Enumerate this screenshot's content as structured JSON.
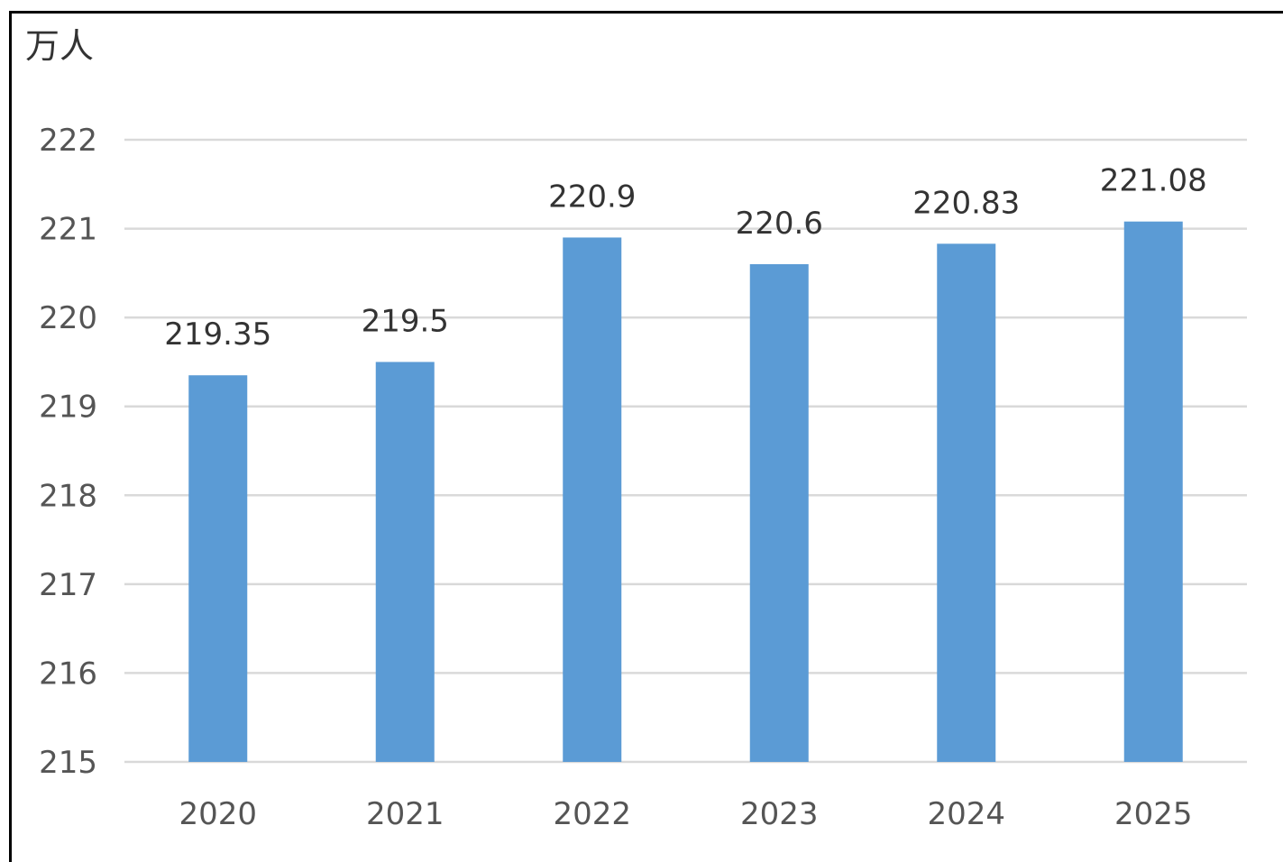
{
  "chart_data": {
    "type": "bar",
    "ylabel": "万人",
    "categories": [
      "2020",
      "2021",
      "2022",
      "2023",
      "2024",
      "2025"
    ],
    "values": [
      219.35,
      219.5,
      220.9,
      220.6,
      220.83,
      221.08
    ],
    "data_labels": [
      "219.35",
      "219.5",
      "220.9",
      "220.6",
      "220.83",
      "221.08"
    ],
    "ylim": [
      215,
      222
    ],
    "yticks": [
      "215",
      "216",
      "217",
      "218",
      "219",
      "220",
      "221",
      "222"
    ],
    "grid": true,
    "legend": "none",
    "bar_color": "#5B9BD5",
    "grid_color": "#D9D9D9"
  }
}
